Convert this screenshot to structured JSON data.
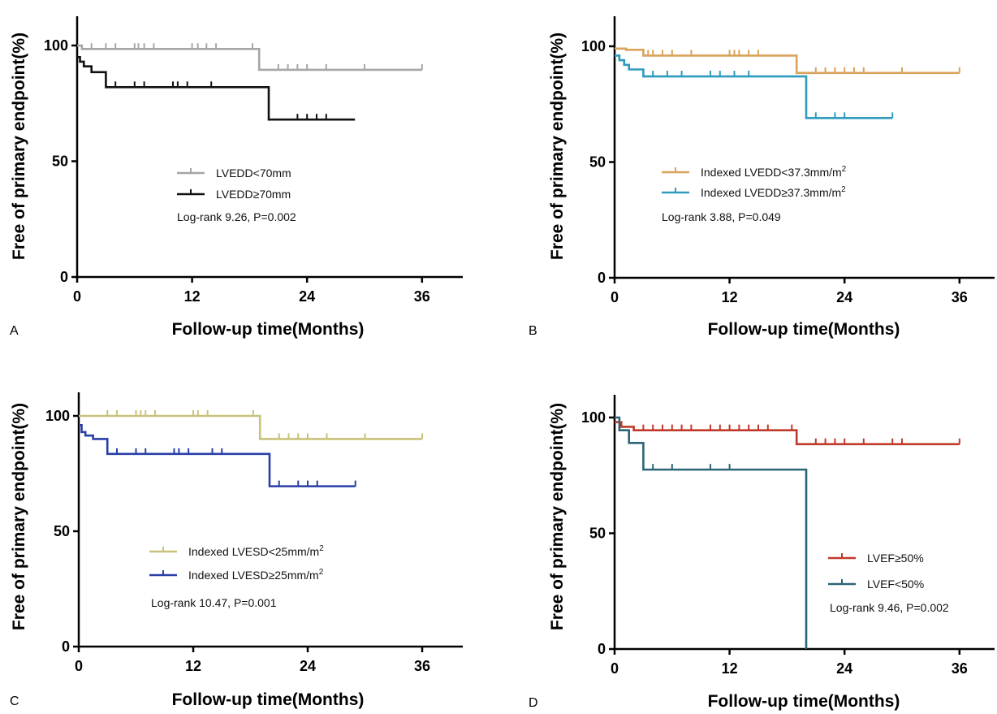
{
  "figure": {
    "background": "#ffffff"
  },
  "chart_data": [
    {
      "type": "line",
      "panel": "A",
      "xlabel": "Follow-up time(Months)",
      "ylabel": "Free of primary endpoint(%)",
      "xlim": [
        0,
        40
      ],
      "ylim": [
        0,
        110
      ],
      "xticks": [
        "0",
        "12",
        "24",
        "36"
      ],
      "yticks": [
        "0",
        "50",
        "100"
      ],
      "stat": "Log-rank 9.26, P=0.002",
      "series": [
        {
          "name": "LVEDD<70mm",
          "color": "#a6a6a6",
          "steps": [
            [
              0,
              100
            ],
            [
              0.5,
              98.5
            ],
            [
              19,
              89.5
            ]
          ],
          "end": 36,
          "censor": [
            1.5,
            3,
            4,
            6,
            6.4,
            7,
            8,
            12,
            12.6,
            13.5,
            14.5,
            18.3,
            21,
            22,
            23,
            24,
            26,
            30,
            36
          ]
        },
        {
          "name": "LVEDD≥70mm",
          "color": "#111111",
          "steps": [
            [
              0,
              95
            ],
            [
              0.3,
              93
            ],
            [
              0.7,
              91
            ],
            [
              1.5,
              88.5
            ],
            [
              3,
              82
            ],
            [
              20,
              68
            ]
          ],
          "end": 29,
          "censor": [
            4,
            6,
            7,
            10,
            10.5,
            11.5,
            14,
            23,
            24,
            25,
            26
          ]
        }
      ]
    },
    {
      "type": "line",
      "panel": "B",
      "xlabel": "Follow-up time(Months)",
      "ylabel": "Free of primary endpoint(%)",
      "xlim": [
        0,
        40
      ],
      "ylim": [
        0,
        110
      ],
      "xticks": [
        "0",
        "12",
        "24",
        "36"
      ],
      "yticks": [
        "0",
        "50",
        "100"
      ],
      "stat": "Log-rank 3.88, P=0.049",
      "series": [
        {
          "name": "Indexed LVEDD<37.3mm/m",
          "name_sup": "2",
          "color": "#d9a35a",
          "steps": [
            [
              0,
              99
            ],
            [
              1.2,
              98.5
            ],
            [
              3,
              96
            ],
            [
              19,
              88.5
            ]
          ],
          "end": 36,
          "censor": [
            3.5,
            4,
            5,
            6,
            8,
            12,
            12.5,
            13,
            14,
            15,
            21,
            22,
            23,
            24,
            25,
            26,
            30,
            36
          ]
        },
        {
          "name": "Indexed LVEDD≥37.3mm/m",
          "name_sup": "2",
          "color": "#2f9bbd",
          "steps": [
            [
              0,
              96
            ],
            [
              0.5,
              94
            ],
            [
              1,
              92
            ],
            [
              1.5,
              90
            ],
            [
              3,
              87
            ],
            [
              20,
              69
            ]
          ],
          "end": 29,
          "censor": [
            4,
            5.5,
            7,
            10,
            11,
            12.5,
            14,
            21,
            23,
            24,
            29
          ]
        }
      ]
    },
    {
      "type": "line",
      "panel": "C",
      "xlabel": "Follow-up time(Months)",
      "ylabel": "Free of primary endpoint(%)",
      "xlim": [
        0,
        40
      ],
      "ylim": [
        0,
        110
      ],
      "xticks": [
        "0",
        "12",
        "24",
        "36"
      ],
      "yticks": [
        "0",
        "50",
        "100"
      ],
      "stat": "Log-rank 10.47, P=0.001",
      "series": [
        {
          "name": "Indexed LVESD<25mm/m",
          "name_sup": "2",
          "color": "#c8c27a",
          "steps": [
            [
              0,
              100
            ],
            [
              19,
              90
            ]
          ],
          "end": 36,
          "censor": [
            3,
            4,
            6,
            6.5,
            7,
            8,
            12,
            12.5,
            13.5,
            18.3,
            21,
            22,
            23,
            24,
            26,
            30,
            36
          ]
        },
        {
          "name": "Indexed LVESD≥25mm/m",
          "name_sup": "2",
          "color": "#2a3fa8",
          "steps": [
            [
              0,
              96
            ],
            [
              0.3,
              93
            ],
            [
              0.7,
              91.5
            ],
            [
              1.5,
              90
            ],
            [
              3,
              83.5
            ],
            [
              20,
              69.5
            ]
          ],
          "end": 29,
          "censor": [
            4,
            6,
            7,
            10,
            10.5,
            11.5,
            14,
            15,
            21,
            23,
            24,
            25,
            29
          ]
        }
      ]
    },
    {
      "type": "line",
      "panel": "D",
      "xlabel": "Follow-up time(Months)",
      "ylabel": "Free of primary endpoint(%)",
      "xlim": [
        0,
        40
      ],
      "ylim": [
        0,
        110
      ],
      "xticks": [
        "0",
        "12",
        "24",
        "36"
      ],
      "yticks": [
        "0",
        "50",
        "100"
      ],
      "stat": "Log-rank 9.46, P=0.002",
      "series": [
        {
          "name": "LVEF≥50%",
          "color": "#c0392b",
          "steps": [
            [
              0,
              98
            ],
            [
              0.7,
              96
            ],
            [
              2,
              94.5
            ],
            [
              19,
              88.5
            ]
          ],
          "end": 36,
          "censor": [
            3,
            4,
            5,
            6,
            7,
            8,
            10,
            11,
            12,
            13,
            14,
            15,
            16,
            18.5,
            21,
            22,
            23,
            24,
            26,
            29,
            30,
            36
          ]
        },
        {
          "name": "LVEF<50%",
          "color": "#2c6577",
          "steps": [
            [
              0,
              100
            ],
            [
              0.5,
              94.5
            ],
            [
              1.5,
              89
            ],
            [
              3,
              77.5
            ],
            [
              20,
              0
            ]
          ],
          "end": 20,
          "censor": [
            4,
            6,
            10,
            12
          ]
        }
      ]
    }
  ]
}
